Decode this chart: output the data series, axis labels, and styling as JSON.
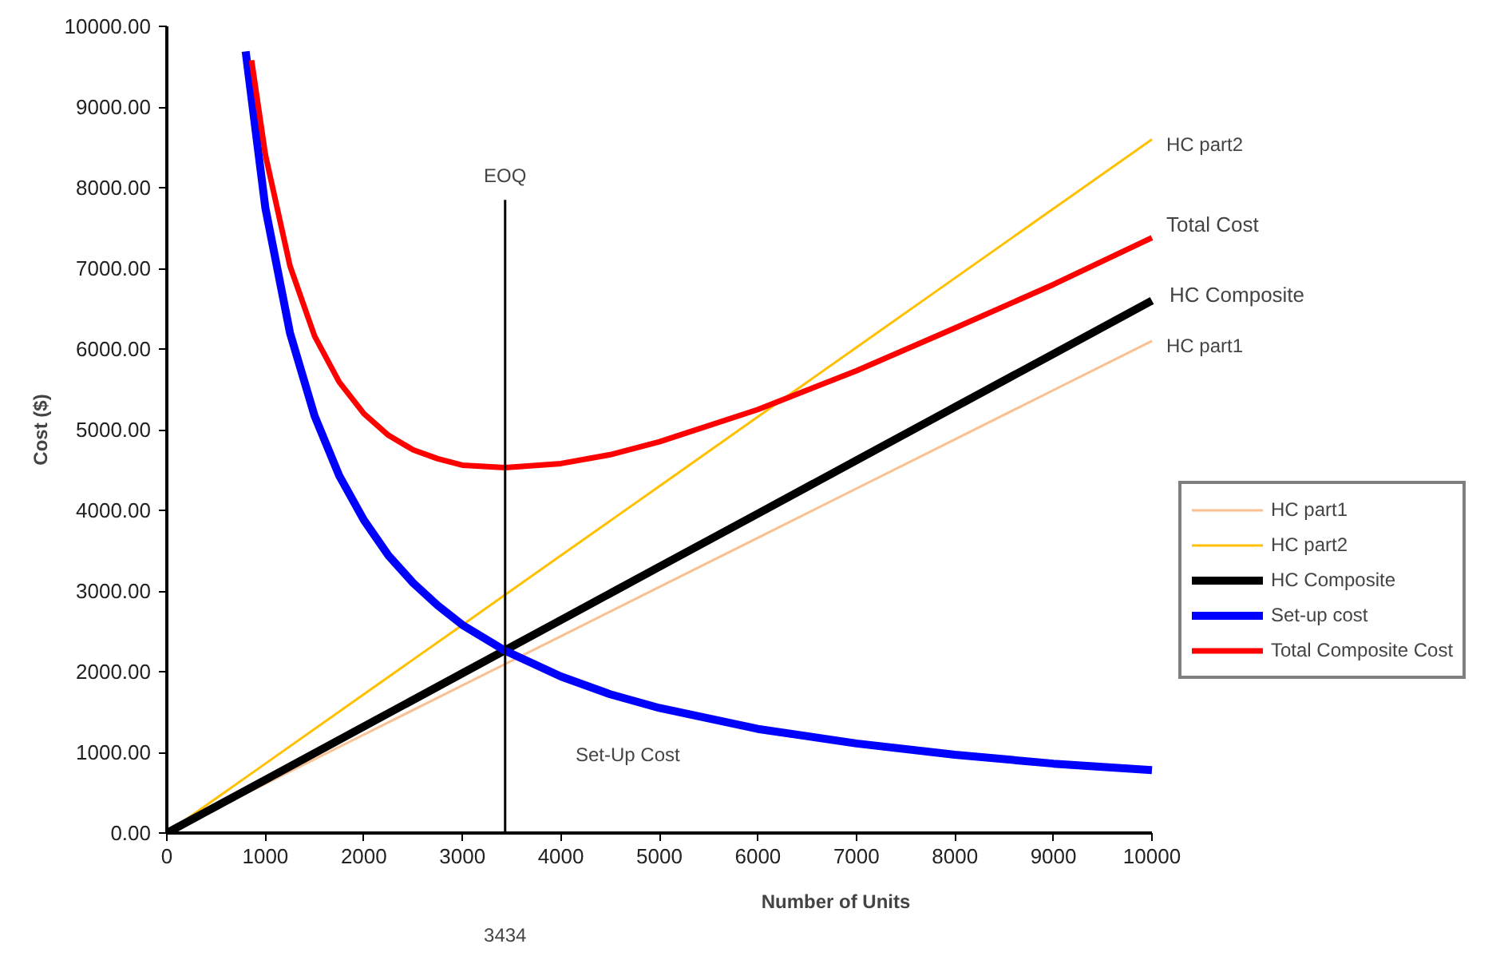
{
  "chart_data": {
    "type": "line",
    "xlabel": "Number of Units",
    "ylabel": "Cost ($)",
    "xlim": [
      0,
      10000
    ],
    "ylim": [
      0,
      10000
    ],
    "xticks": [
      0,
      1000,
      2000,
      3000,
      4000,
      5000,
      6000,
      7000,
      8000,
      9000,
      10000
    ],
    "yticks": [
      {
        "value": 0,
        "label": "0.00"
      },
      {
        "value": 1000,
        "label": "1000.00"
      },
      {
        "value": 2000,
        "label": "2000.00"
      },
      {
        "value": 3000,
        "label": "3000.00"
      },
      {
        "value": 4000,
        "label": "4000.00"
      },
      {
        "value": 5000,
        "label": "5000.00"
      },
      {
        "value": 6000,
        "label": "6000.00"
      },
      {
        "value": 7000,
        "label": "7000.00"
      },
      {
        "value": 8000,
        "label": "8000.00"
      },
      {
        "value": 9000,
        "label": "9000.00"
      },
      {
        "value": 10000,
        "label": "10000.00"
      }
    ],
    "grid": false,
    "legend": "right",
    "marker": "none",
    "line_style": "solid",
    "series": [
      {
        "name": "HC part1",
        "color": "#fac090",
        "x": [
          0,
          1000,
          2000,
          3000,
          4000,
          5000,
          6000,
          7000,
          8000,
          9000,
          10000
        ],
        "values": [
          0,
          610,
          1220,
          1830,
          2440,
          3050,
          3660,
          4270,
          4880,
          5490,
          6100
        ]
      },
      {
        "name": "HC part2",
        "color": "#ffc000",
        "x": [
          0,
          1000,
          2000,
          3000,
          4000,
          5000,
          6000,
          7000,
          8000,
          9000,
          10000
        ],
        "values": [
          0,
          860,
          1720,
          2580,
          3440,
          4300,
          5160,
          6020,
          6880,
          7740,
          8600
        ]
      },
      {
        "name": "HC Composite",
        "color": "#000000",
        "x": [
          0,
          1000,
          2000,
          3000,
          4000,
          5000,
          6000,
          7000,
          8000,
          9000,
          10000
        ],
        "values": [
          0,
          660,
          1320,
          1980,
          2640,
          3300,
          3960,
          4620,
          5280,
          5940,
          6600
        ]
      },
      {
        "name": "Set-up cost",
        "color": "#0000ff",
        "x": [
          800,
          1000,
          1250,
          1500,
          1750,
          2000,
          2250,
          2500,
          2750,
          3000,
          3434,
          4000,
          4500,
          5000,
          6000,
          7000,
          8000,
          9000,
          10000
        ],
        "values": [
          9690,
          7750,
          6200,
          5170,
          4430,
          3880,
          3440,
          3100,
          2820,
          2580,
          2260,
          1940,
          1720,
          1550,
          1290,
          1110,
          970,
          860,
          780
        ]
      },
      {
        "name": "Total Composite Cost",
        "color": "#ff0000",
        "x": [
          860,
          1000,
          1250,
          1500,
          1750,
          2000,
          2250,
          2500,
          2750,
          3000,
          3434,
          4000,
          4500,
          5000,
          6000,
          7000,
          8000,
          9000,
          10000
        ],
        "values": [
          9580,
          8410,
          7030,
          6160,
          5590,
          5200,
          4930,
          4750,
          4640,
          4560,
          4530,
          4580,
          4690,
          4850,
          5250,
          5730,
          6260,
          6800,
          7380
        ]
      }
    ],
    "ref_lines": [
      {
        "axis": "x",
        "value": 3434,
        "label": "EOQ",
        "color": "#000000"
      }
    ],
    "annotations": [
      "HC part2",
      "Total Cost",
      "HC Composite",
      "HC part1",
      "Set-Up Cost",
      "3434"
    ]
  }
}
